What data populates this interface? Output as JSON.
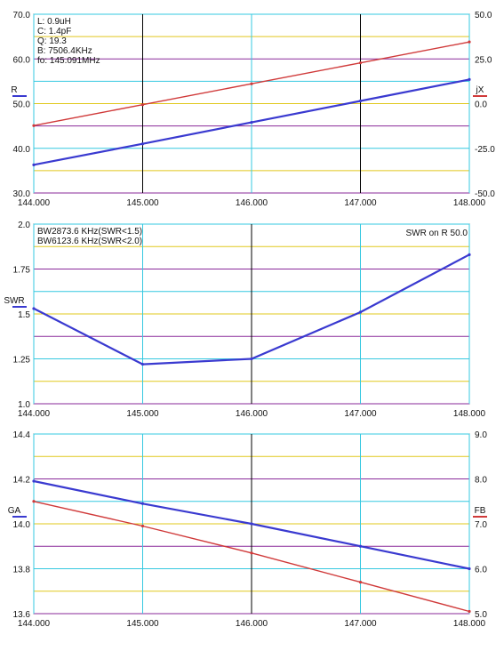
{
  "colors": {
    "grid_cyan": "#35c8e0",
    "grid_yellow": "#e0c81e",
    "grid_purple": "#8a2a9a",
    "marker_line": "#000000",
    "series_blue": "#3a3ad0",
    "series_red": "#d03a3a",
    "frame": "#555555"
  },
  "chart_data": [
    {
      "type": "line",
      "x_ticks": [
        "144.000",
        "145.000",
        "146.000",
        "147.000",
        "148.000"
      ],
      "xlim": [
        144,
        148
      ],
      "ylabel": "R",
      "ylabel_right": "jX",
      "ylim": [
        30,
        70
      ],
      "ylim_right": [
        -50,
        50
      ],
      "y_ticks": [
        "70.0",
        "60.0",
        "50.0",
        "40.0",
        "30.0"
      ],
      "y_ticks_right": [
        "50.0",
        "25.0",
        "0.0",
        "-25.0",
        "-50.0"
      ],
      "annotations": [
        "L: 0.9uH",
        "C: 1.4pF",
        "Q: 19.3",
        "B: 7506.4KHz",
        "fo: 145.091MHz"
      ],
      "markers_x": [
        145,
        147
      ],
      "series": [
        {
          "axis": "left",
          "color": "blue",
          "x": [
            144,
            145,
            146,
            147,
            148
          ],
          "values": [
            36.3,
            41.0,
            45.8,
            50.6,
            55.4
          ]
        },
        {
          "axis": "right",
          "color": "red",
          "x": [
            144,
            145,
            146,
            147,
            148
          ],
          "values": [
            -12.3,
            -0.6,
            11.1,
            22.8,
            34.5
          ]
        }
      ],
      "grid": true
    },
    {
      "type": "line",
      "x_ticks": [
        "144.000",
        "145.000",
        "146.000",
        "147.000",
        "148.000"
      ],
      "xlim": [
        144,
        148
      ],
      "ylabel": "SWR",
      "ylim": [
        1.0,
        2.0
      ],
      "y_ticks": [
        "2.0",
        "1.75",
        "1.5",
        "1.25",
        "1.0"
      ],
      "annotations": [
        "BW2873.6 KHz(SWR<1.5)",
        "BW6123.6 KHz(SWR<2.0)"
      ],
      "annotation_right": "SWR on R 50.0",
      "markers_x": [
        146
      ],
      "series": [
        {
          "axis": "left",
          "color": "blue",
          "x": [
            144,
            145,
            146,
            147,
            148
          ],
          "values": [
            1.53,
            1.22,
            1.25,
            1.51,
            1.83
          ]
        }
      ],
      "grid": true
    },
    {
      "type": "line",
      "x_ticks": [
        "144.000",
        "145.000",
        "146.000",
        "147.000",
        "148.000"
      ],
      "xlim": [
        144,
        148
      ],
      "ylabel": "GA",
      "ylabel_right": "FB",
      "ylim": [
        13.6,
        14.4
      ],
      "ylim_right": [
        5.0,
        9.0
      ],
      "y_ticks": [
        "14.4",
        "14.2",
        "14.0",
        "13.8",
        "13.6"
      ],
      "y_ticks_right": [
        "9.0",
        "8.0",
        "7.0",
        "6.0",
        "5.0"
      ],
      "markers_x": [
        146
      ],
      "series": [
        {
          "axis": "left",
          "color": "blue",
          "x": [
            144,
            145,
            146,
            147,
            148
          ],
          "values": [
            14.19,
            14.09,
            14.0,
            13.9,
            13.8
          ]
        },
        {
          "axis": "right",
          "color": "red",
          "x": [
            144,
            145,
            146,
            147,
            148
          ],
          "values": [
            7.5,
            6.95,
            6.35,
            5.7,
            5.05
          ]
        }
      ],
      "grid": true
    }
  ]
}
